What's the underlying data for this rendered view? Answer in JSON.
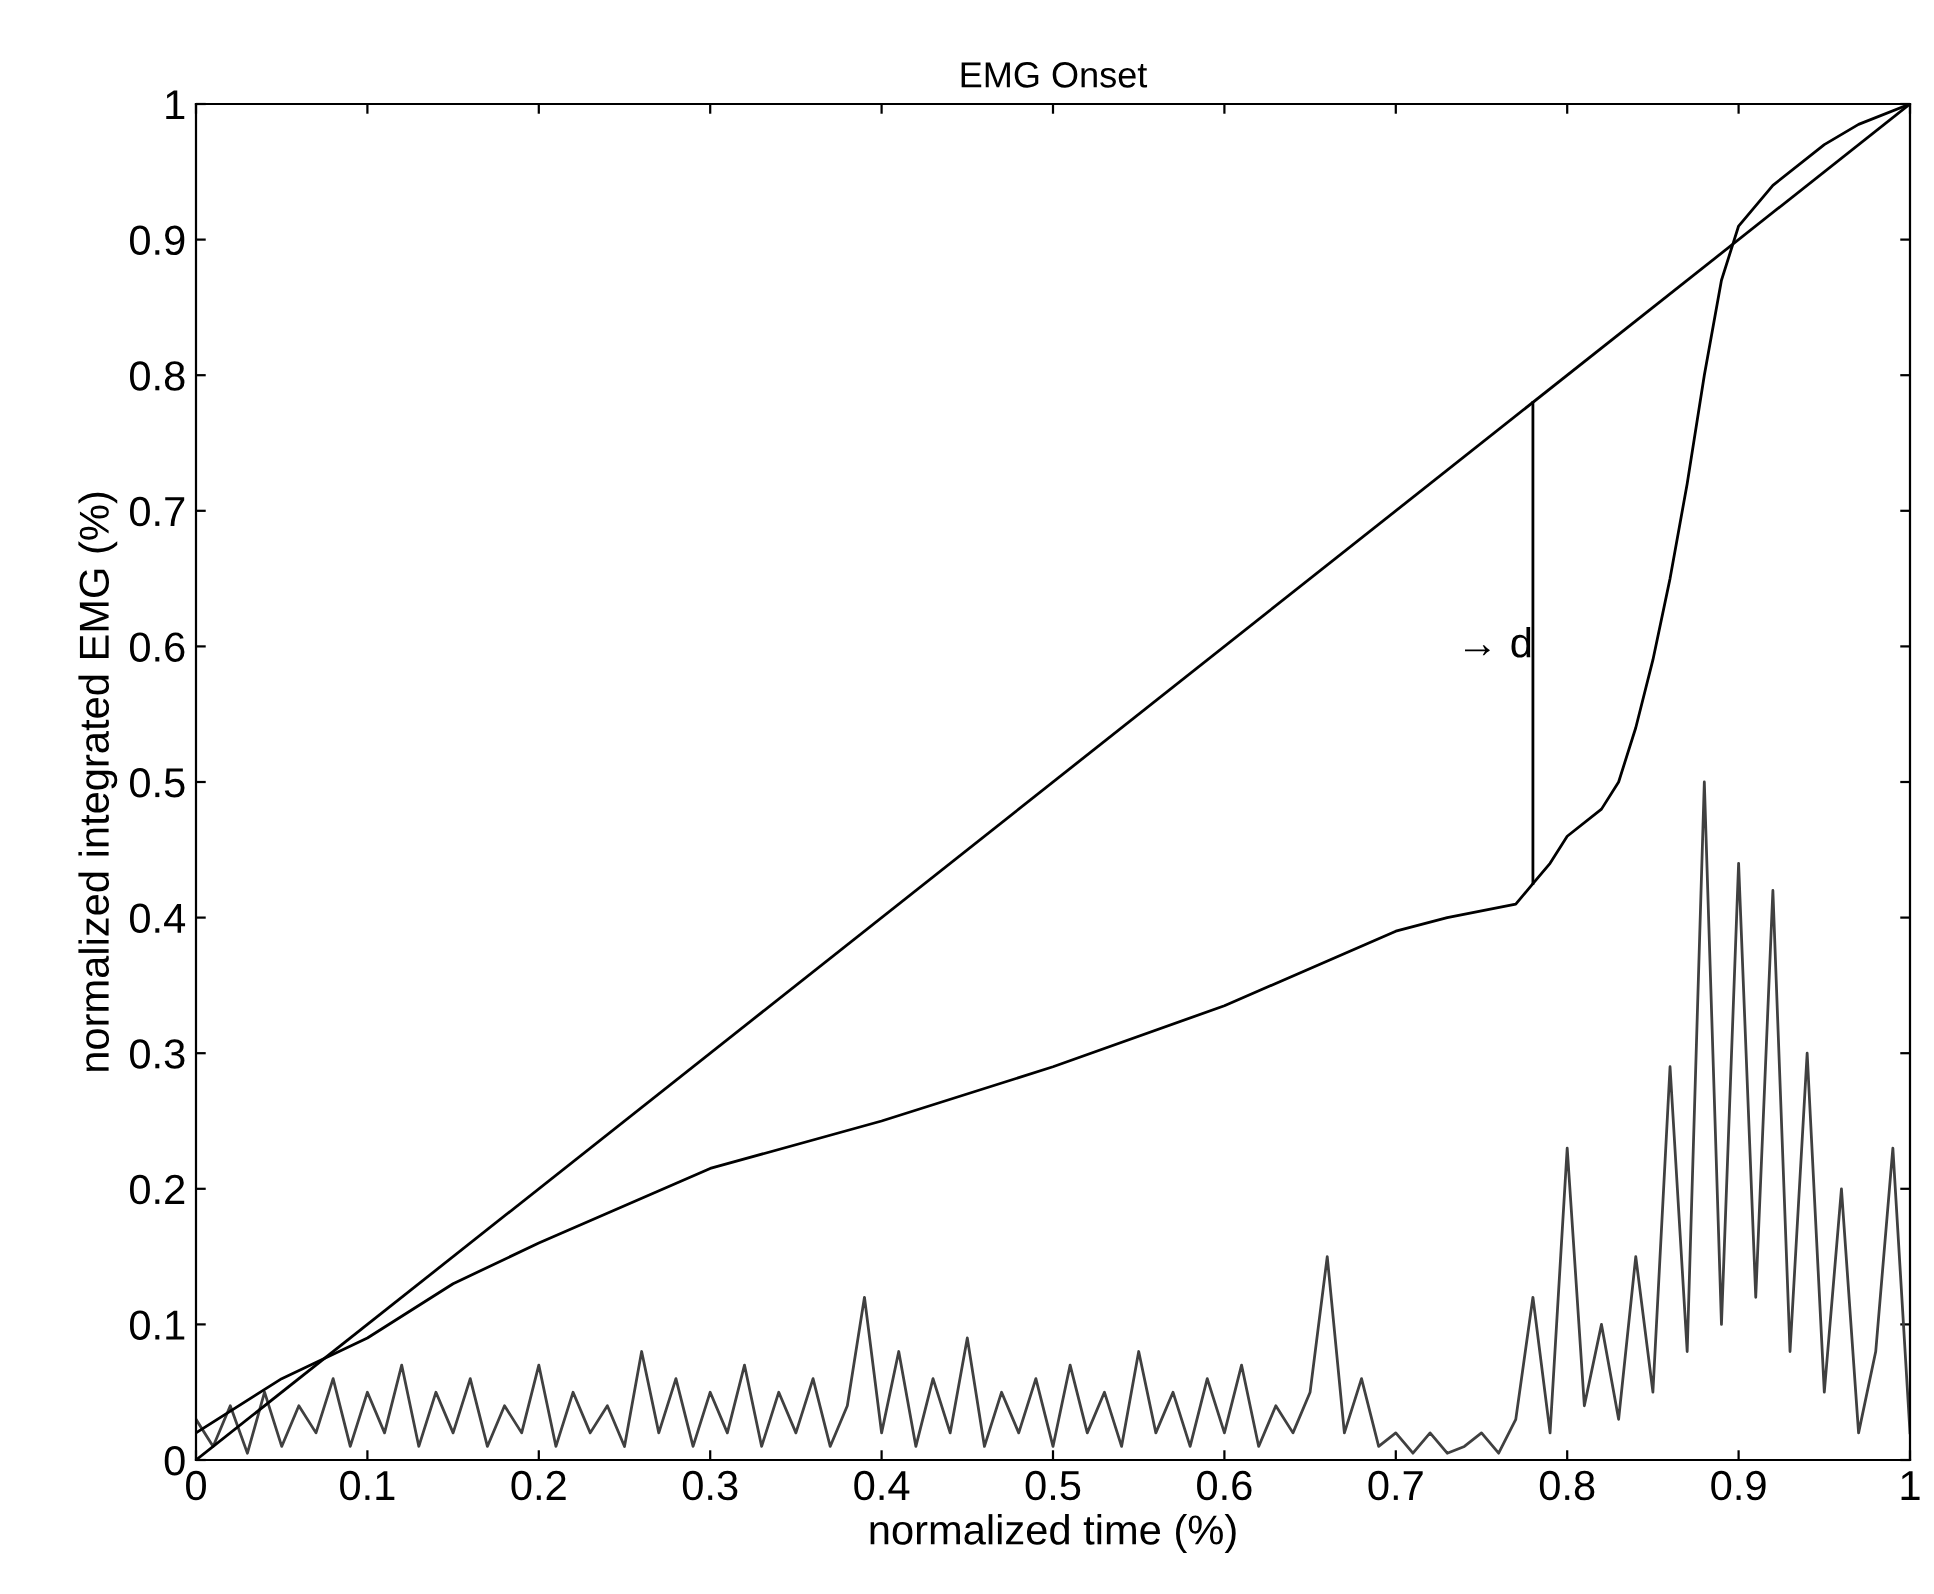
{
  "chart_data": {
    "type": "line",
    "title": "EMG Onset",
    "xlabel": "normalized time (%)",
    "ylabel": "normalized integrated EMG (%)",
    "xlim": [
      0,
      1
    ],
    "ylim": [
      0,
      1
    ],
    "xticks": [
      0,
      0.1,
      0.2,
      0.3,
      0.4,
      0.5,
      0.6,
      0.7,
      0.8,
      0.9,
      1
    ],
    "yticks": [
      0,
      0.1,
      0.2,
      0.3,
      0.4,
      0.5,
      0.6,
      0.7,
      0.8,
      0.9,
      1
    ],
    "grid": false,
    "legend": false,
    "series": [
      {
        "color": "#404040",
        "x": [
          0,
          0.01,
          0.02,
          0.03,
          0.04,
          0.05,
          0.06,
          0.07,
          0.08,
          0.09,
          0.1,
          0.11,
          0.12,
          0.13,
          0.14,
          0.15,
          0.16,
          0.17,
          0.18,
          0.19,
          0.2,
          0.21,
          0.22,
          0.23,
          0.24,
          0.25,
          0.26,
          0.27,
          0.28,
          0.29,
          0.3,
          0.31,
          0.32,
          0.33,
          0.34,
          0.35,
          0.36,
          0.37,
          0.38,
          0.39,
          0.4,
          0.41,
          0.42,
          0.43,
          0.44,
          0.45,
          0.46,
          0.47,
          0.48,
          0.49,
          0.5,
          0.51,
          0.52,
          0.53,
          0.54,
          0.55,
          0.56,
          0.57,
          0.58,
          0.59,
          0.6,
          0.61,
          0.62,
          0.63,
          0.64,
          0.65,
          0.66,
          0.67,
          0.68,
          0.69,
          0.7,
          0.71,
          0.72,
          0.73,
          0.74,
          0.75,
          0.76,
          0.77,
          0.78,
          0.79,
          0.8,
          0.81,
          0.82,
          0.83,
          0.84,
          0.85,
          0.86,
          0.87,
          0.88,
          0.89,
          0.9,
          0.91,
          0.92,
          0.93,
          0.94,
          0.95,
          0.96,
          0.97,
          0.98,
          0.99,
          1
        ],
        "values": [
          0.03,
          0.01,
          0.04,
          0.005,
          0.05,
          0.01,
          0.04,
          0.02,
          0.06,
          0.01,
          0.05,
          0.02,
          0.07,
          0.01,
          0.05,
          0.02,
          0.06,
          0.01,
          0.04,
          0.02,
          0.07,
          0.01,
          0.05,
          0.02,
          0.04,
          0.01,
          0.08,
          0.02,
          0.06,
          0.01,
          0.05,
          0.02,
          0.07,
          0.01,
          0.05,
          0.02,
          0.06,
          0.01,
          0.04,
          0.12,
          0.02,
          0.08,
          0.01,
          0.06,
          0.02,
          0.09,
          0.01,
          0.05,
          0.02,
          0.06,
          0.01,
          0.07,
          0.02,
          0.05,
          0.01,
          0.08,
          0.02,
          0.05,
          0.01,
          0.06,
          0.02,
          0.07,
          0.01,
          0.04,
          0.02,
          0.05,
          0.15,
          0.02,
          0.06,
          0.01,
          0.02,
          0.005,
          0.02,
          0.005,
          0.01,
          0.02,
          0.005,
          0.03,
          0.12,
          0.02,
          0.23,
          0.04,
          0.1,
          0.03,
          0.15,
          0.05,
          0.29,
          0.08,
          0.5,
          0.1,
          0.44,
          0.12,
          0.42,
          0.08,
          0.3,
          0.05,
          0.2,
          0.02,
          0.08,
          0.23,
          0.02
        ]
      },
      {
        "color": "#000000",
        "x": [
          0,
          1
        ],
        "values": [
          0,
          1
        ]
      },
      {
        "color": "#000000",
        "x": [
          0,
          0.05,
          0.1,
          0.15,
          0.2,
          0.3,
          0.4,
          0.5,
          0.6,
          0.7,
          0.73,
          0.77,
          0.78,
          0.79,
          0.8,
          0.82,
          0.83,
          0.84,
          0.85,
          0.86,
          0.87,
          0.88,
          0.89,
          0.9,
          0.92,
          0.95,
          0.97,
          1
        ],
        "values": [
          0.02,
          0.06,
          0.09,
          0.13,
          0.16,
          0.215,
          0.25,
          0.29,
          0.335,
          0.39,
          0.4,
          0.41,
          0.425,
          0.44,
          0.46,
          0.48,
          0.5,
          0.54,
          0.59,
          0.65,
          0.72,
          0.8,
          0.87,
          0.91,
          0.94,
          0.97,
          0.985,
          1
        ]
      },
      {
        "color": "#000000",
        "x": [
          0.78,
          0.78
        ],
        "values": [
          0.425,
          0.78
        ]
      }
    ],
    "annotations": [
      {
        "text": "→ d",
        "x": 0.78,
        "y": 0.6
      }
    ]
  }
}
